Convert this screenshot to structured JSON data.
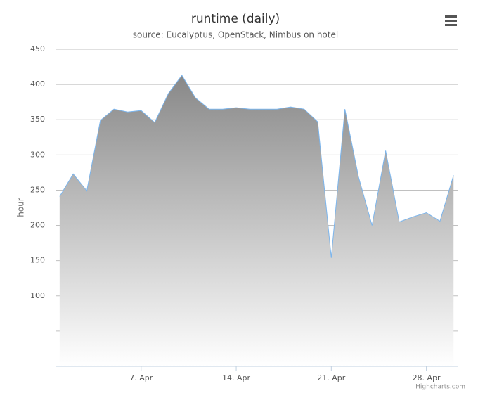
{
  "chart_data": {
    "type": "area",
    "title": "runtime (daily)",
    "subtitle": "source: Eucalyptus, OpenStack, Nimbus on hotel",
    "y_label": "hour",
    "credits": "Highcharts.com",
    "x": [
      1,
      2,
      3,
      4,
      5,
      6,
      7,
      8,
      9,
      10,
      11,
      12,
      13,
      14,
      15,
      16,
      17,
      18,
      19,
      20,
      21,
      22,
      23,
      24,
      25,
      26,
      27,
      28,
      29,
      30
    ],
    "series": [
      {
        "color": "#7cb5ec",
        "values": [
          241,
          273,
          249,
          349,
          365,
          361,
          363,
          346,
          387,
          413,
          381,
          365,
          365,
          367,
          365,
          365,
          365,
          368,
          365,
          347,
          154,
          365,
          269,
          200,
          306,
          205,
          212,
          218,
          206,
          271
        ]
      }
    ],
    "xlim": [
      0.75,
      30.35
    ],
    "xticks": [
      {
        "value": 7,
        "label": "7. Apr"
      },
      {
        "value": 14,
        "label": "14. Apr"
      },
      {
        "value": 21,
        "label": "21. Apr"
      },
      {
        "value": 28,
        "label": "28. Apr"
      }
    ],
    "ylim": [
      0,
      450
    ],
    "yticks": [
      100,
      150,
      200,
      250,
      300,
      350,
      400,
      450
    ],
    "ygrid": [
      0,
      50,
      100,
      150,
      200,
      250,
      300,
      350,
      400,
      450
    ],
    "fill_top": "#888888",
    "fill_bottom": "#ffffff"
  }
}
